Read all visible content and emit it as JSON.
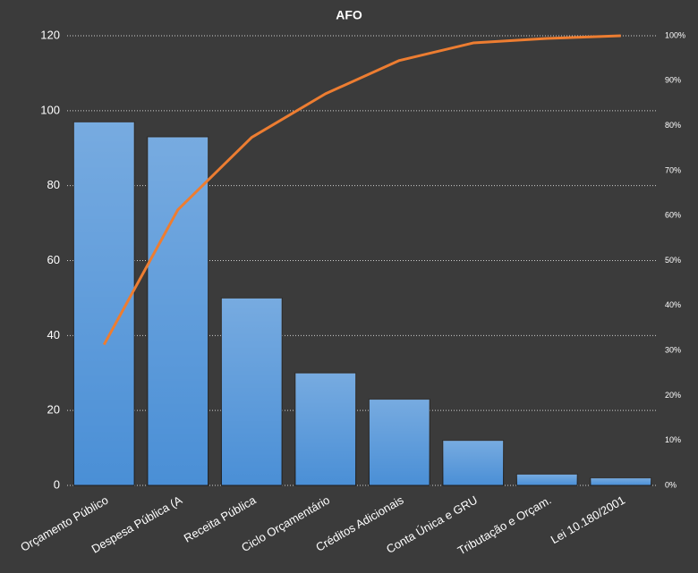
{
  "chart_data": {
    "type": "bar",
    "title": "AFO",
    "categories": [
      "Orçamento Público",
      "Despesa Pública (A",
      "Receita Pública",
      "Ciclo Orçamentário",
      "Créditos Adicionais",
      "Conta Única e GRU",
      "Tributação e Orçam.",
      "Lei 10.180/2001"
    ],
    "series": [
      {
        "type": "bar",
        "color": "#4a8fd6",
        "values": [
          97,
          93,
          50,
          30,
          23,
          12,
          3,
          2
        ]
      },
      {
        "type": "line",
        "axis": "y2",
        "color": "#ed7d31",
        "values": [
          31.3,
          61.3,
          77.4,
          87.1,
          94.5,
          98.4,
          99.4,
          100
        ]
      }
    ],
    "ylim": [
      0,
      120
    ],
    "yticks": [
      0,
      20,
      40,
      60,
      80,
      100,
      120
    ],
    "y2lim": [
      0,
      100
    ],
    "y2ticks": [
      {
        "value": 0,
        "label": "0%"
      },
      {
        "value": 10,
        "label": "10%"
      },
      {
        "value": 20,
        "label": "20%"
      },
      {
        "value": 30,
        "label": "30%"
      },
      {
        "value": 40,
        "label": "40%"
      },
      {
        "value": 50,
        "label": "50%"
      },
      {
        "value": 60,
        "label": "60%"
      },
      {
        "value": 70,
        "label": "70%"
      },
      {
        "value": 80,
        "label": "80%"
      },
      {
        "value": 90,
        "label": "90%"
      },
      {
        "value": 100,
        "label": "100%"
      }
    ],
    "grid": true
  }
}
